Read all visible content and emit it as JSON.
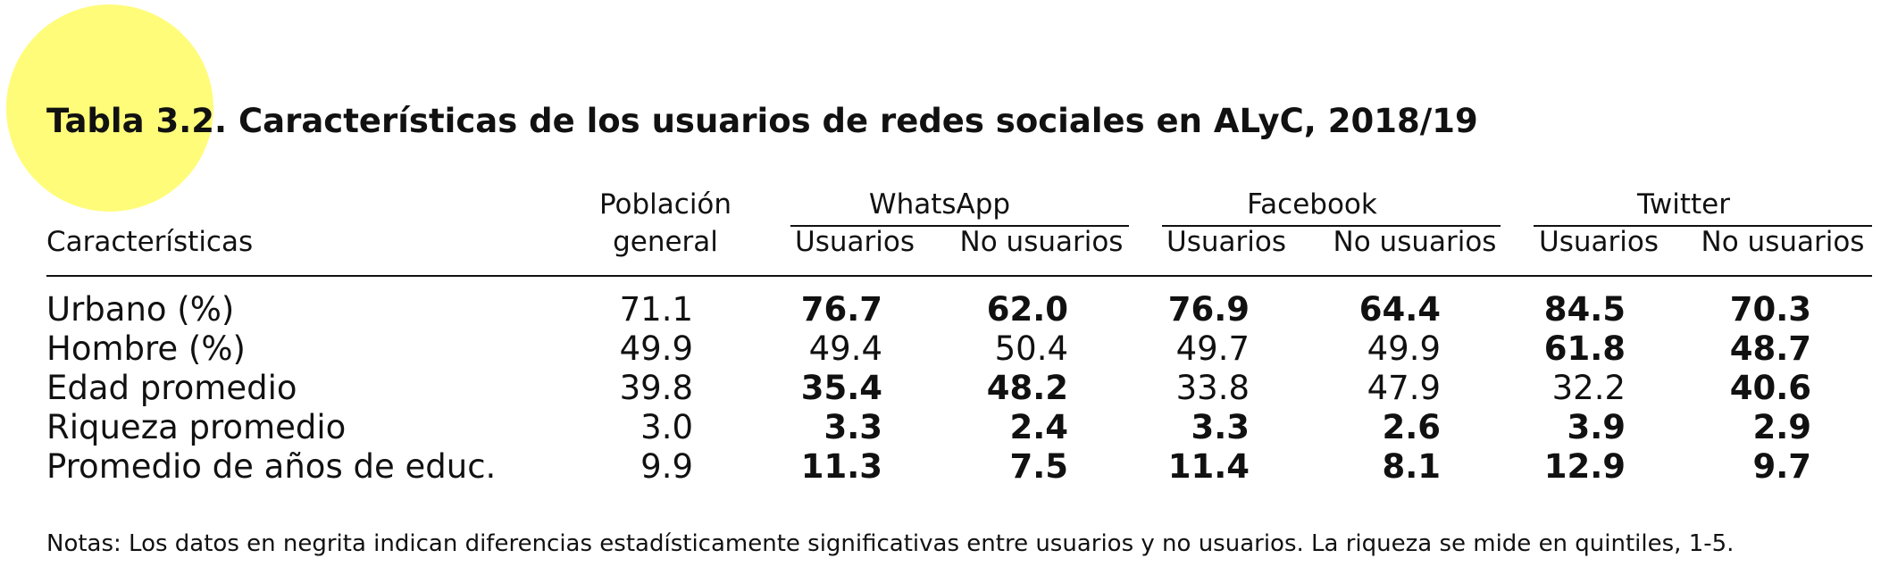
{
  "highlight_color": "#fffc7a",
  "title": {
    "label": "Tabla 3.2.",
    "text": " Características de los usuarios de redes sociales en ALyC, 2018/19"
  },
  "header": {
    "characteristics": "Características",
    "population": [
      "Población",
      "general"
    ],
    "groups": [
      "WhatsApp",
      "Facebook",
      "Twitter"
    ],
    "users": "Usuarios",
    "non_users": "No usuarios"
  },
  "rows": [
    {
      "label": "Urbano (%)",
      "values": [
        {
          "v": "71.1",
          "bold": false
        },
        {
          "v": "76.7",
          "bold": true
        },
        {
          "v": "62.0",
          "bold": true
        },
        {
          "v": "76.9",
          "bold": true
        },
        {
          "v": "64.4",
          "bold": true
        },
        {
          "v": "84.5",
          "bold": true
        },
        {
          "v": "70.3",
          "bold": true
        }
      ]
    },
    {
      "label": "Hombre (%)",
      "values": [
        {
          "v": "49.9",
          "bold": false
        },
        {
          "v": "49.4",
          "bold": false
        },
        {
          "v": "50.4",
          "bold": false
        },
        {
          "v": "49.7",
          "bold": false
        },
        {
          "v": "49.9",
          "bold": false
        },
        {
          "v": "61.8",
          "bold": true
        },
        {
          "v": "48.7",
          "bold": true
        }
      ]
    },
    {
      "label": "Edad promedio",
      "values": [
        {
          "v": "39.8",
          "bold": false
        },
        {
          "v": "35.4",
          "bold": true
        },
        {
          "v": "48.2",
          "bold": true
        },
        {
          "v": "33.8",
          "bold": false
        },
        {
          "v": "47.9",
          "bold": false
        },
        {
          "v": "32.2",
          "bold": false
        },
        {
          "v": "40.6",
          "bold": true
        }
      ]
    },
    {
      "label": "Riqueza promedio",
      "values": [
        {
          "v": "3.0",
          "bold": false
        },
        {
          "v": "3.3",
          "bold": true
        },
        {
          "v": "2.4",
          "bold": true
        },
        {
          "v": "3.3",
          "bold": true
        },
        {
          "v": "2.6",
          "bold": true
        },
        {
          "v": "3.9",
          "bold": true
        },
        {
          "v": "2.9",
          "bold": true
        }
      ]
    },
    {
      "label": "Promedio de años de educ.",
      "values": [
        {
          "v": "9.9",
          "bold": false
        },
        {
          "v": "11.3",
          "bold": true
        },
        {
          "v": "7.5",
          "bold": true
        },
        {
          "v": "11.4",
          "bold": true
        },
        {
          "v": "8.1",
          "bold": true
        },
        {
          "v": "12.9",
          "bold": true
        },
        {
          "v": "9.7",
          "bold": true
        }
      ]
    }
  ],
  "note": "Notas: Los datos en negrita indican diferencias estadísticamente significativas entre usuarios y no usuarios. La riqueza se mide en quintiles, 1-5."
}
